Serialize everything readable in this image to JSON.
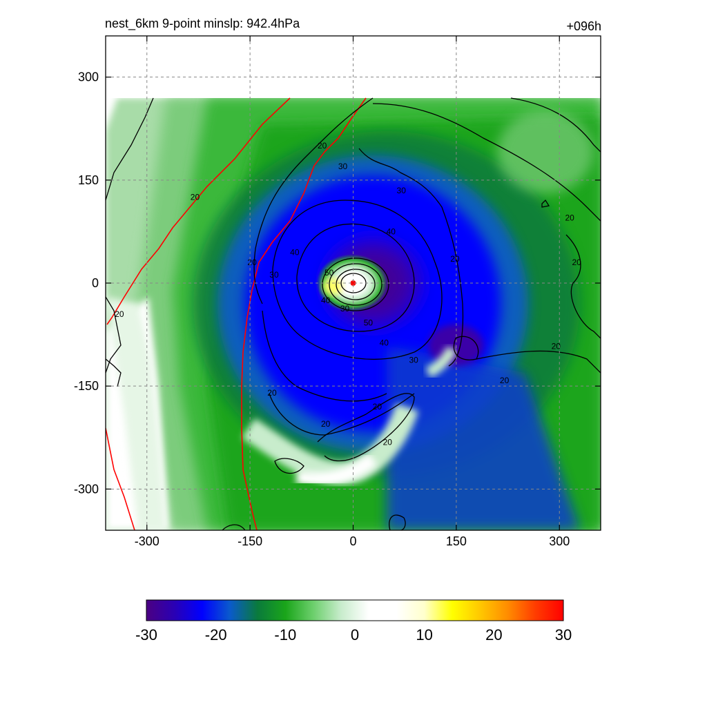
{
  "chart_data": {
    "type": "heatmap",
    "title_left": "nest_6km  9-point minslp: 942.4hPa",
    "title_right": "+096h",
    "xlabel": "",
    "ylabel": "",
    "xlim": [
      -360,
      360
    ],
    "ylim": [
      -360,
      360
    ],
    "x_ticks": [
      -300,
      -150,
      0,
      150,
      300
    ],
    "y_ticks": [
      -300,
      -150,
      0,
      150,
      300
    ],
    "grid": true,
    "colorbar": {
      "min": -30,
      "max": 30,
      "ticks": [
        -30,
        -20,
        -10,
        0,
        10,
        20,
        30
      ],
      "stops": [
        "#4b0082",
        "#2a00b4",
        "#0000ff",
        "#0a5acc",
        "#0a7a3c",
        "#1aa51a",
        "#6ccf6c",
        "#c8eccc",
        "#ffffff",
        "#ffffff",
        "#ffffcc",
        "#ffff00",
        "#ffc800",
        "#ff8c00",
        "#ff3c00",
        "#ff0000"
      ]
    },
    "contour_levels": [
      20,
      30,
      40,
      50
    ],
    "contour_labels": [
      {
        "text": "20",
        "x": -45,
        "y": 200
      },
      {
        "text": "30",
        "x": -15,
        "y": 170
      },
      {
        "text": "30",
        "x": 70,
        "y": 135
      },
      {
        "text": "20",
        "x": -230,
        "y": 125
      },
      {
        "text": "40",
        "x": 55,
        "y": 75
      },
      {
        "text": "20",
        "x": 315,
        "y": 95
      },
      {
        "text": "20",
        "x": 148,
        "y": 35
      },
      {
        "text": "40",
        "x": -85,
        "y": 45
      },
      {
        "text": "20",
        "x": -147,
        "y": 30
      },
      {
        "text": "20",
        "x": 325,
        "y": 30
      },
      {
        "text": "50",
        "x": -35,
        "y": 15
      },
      {
        "text": "30",
        "x": -115,
        "y": 12
      },
      {
        "text": "40",
        "x": -40,
        "y": -25
      },
      {
        "text": "30",
        "x": -12,
        "y": -37
      },
      {
        "text": "20",
        "x": -340,
        "y": -45
      },
      {
        "text": "50",
        "x": 22,
        "y": -58
      },
      {
        "text": "40",
        "x": 45,
        "y": -87
      },
      {
        "text": "20",
        "x": 295,
        "y": -92
      },
      {
        "text": "30",
        "x": 88,
        "y": -112
      },
      {
        "text": "20",
        "x": 220,
        "y": -142
      },
      {
        "text": "20",
        "x": -118,
        "y": -160
      },
      {
        "text": "20",
        "x": 35,
        "y": -180
      },
      {
        "text": "20",
        "x": -40,
        "y": -205
      },
      {
        "text": "20",
        "x": 50,
        "y": -232
      }
    ],
    "center_marker": {
      "x": 0,
      "y": 0,
      "color": "#ff0000"
    }
  }
}
